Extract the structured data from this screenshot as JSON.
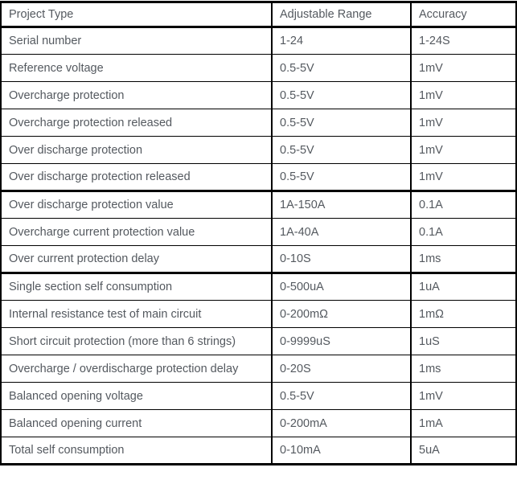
{
  "chart_data": {
    "type": "table",
    "columns": [
      "Project Type",
      "Adjustable Range",
      "Accuracy"
    ],
    "rows": [
      [
        "Serial number",
        "1-24",
        "1-24S"
      ],
      [
        "Reference voltage",
        "0.5-5V",
        "1mV"
      ],
      [
        "Overcharge protection",
        "0.5-5V",
        "1mV"
      ],
      [
        "Overcharge protection released",
        "0.5-5V",
        "1mV"
      ],
      [
        "Over discharge protection",
        "0.5-5V",
        "1mV"
      ],
      [
        "Over discharge protection released",
        "0.5-5V",
        "1mV"
      ],
      [
        "Over discharge protection value",
        "1A-150A",
        "0.1A"
      ],
      [
        "Overcharge current protection value",
        "1A-40A",
        "0.1A"
      ],
      [
        "Over current protection delay",
        "0-10S",
        "1ms"
      ],
      [
        "Single section self consumption",
        "0-500uA",
        "1uA"
      ],
      [
        "Internal resistance test of main circuit",
        "0-200mΩ",
        "1mΩ"
      ],
      [
        "Short circuit protection (more than 6 strings)",
        "0-9999uS",
        "1uS"
      ],
      [
        "Overcharge / overdischarge protection delay",
        "0-20S",
        "1ms"
      ],
      [
        "Balanced opening voltage",
        "0.5-5V",
        "1mV"
      ],
      [
        "Balanced opening current",
        "0-200mA",
        "1mA"
      ],
      [
        "Total self consumption",
        "0-10mA",
        "5uA"
      ]
    ]
  },
  "colors": {
    "border": "#000000",
    "text": "#54595f",
    "background": "#ffffff"
  }
}
